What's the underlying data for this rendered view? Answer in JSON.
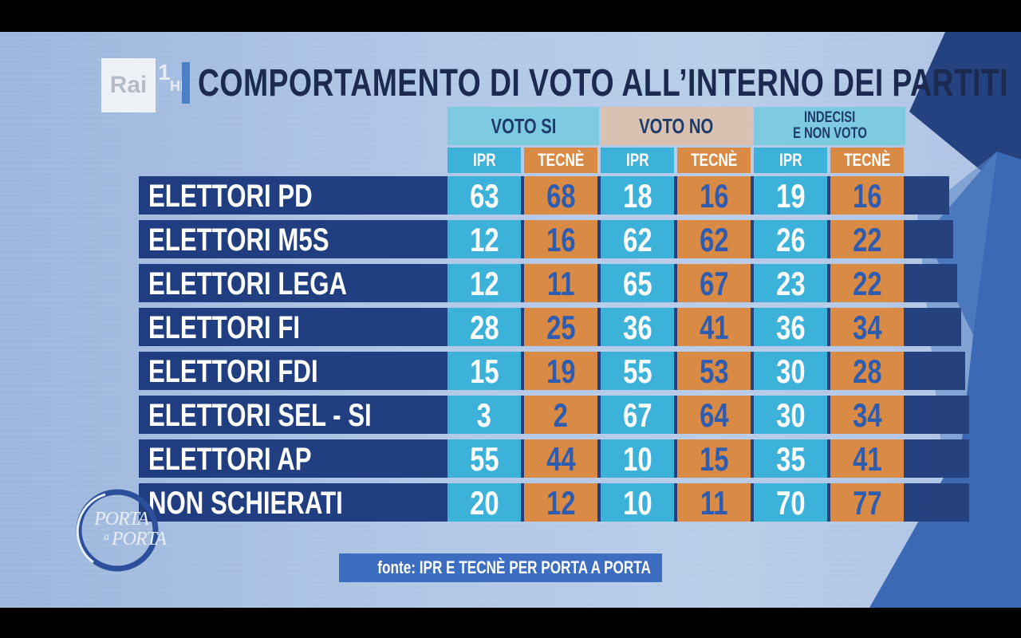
{
  "channel": {
    "rai": "Rai",
    "one": "1",
    "hd": "HD"
  },
  "title": "COMPORTAMENTO DI VOTO ALL’INTERNO DEI PARTITI",
  "chart_data": {
    "type": "table",
    "title": "COMPORTAMENTO DI VOTO ALL’INTERNO DEI PARTITI",
    "column_groups": [
      "VOTO SI",
      "VOTO NO",
      "INDECISI E NON VOTO"
    ],
    "column_group_lines": [
      [
        "VOTO SI"
      ],
      [
        "VOTO NO"
      ],
      [
        "INDECISI",
        "E NON VOTO"
      ]
    ],
    "subcolumns": [
      "IPR",
      "TECNÈ"
    ],
    "rows": [
      {
        "label": "ELETTORI PD",
        "values": [
          63,
          68,
          18,
          16,
          19,
          16
        ]
      },
      {
        "label": "ELETTORI M5S",
        "values": [
          12,
          16,
          62,
          62,
          26,
          22
        ]
      },
      {
        "label": "ELETTORI LEGA",
        "values": [
          12,
          11,
          65,
          67,
          23,
          22
        ]
      },
      {
        "label": "ELETTORI FI",
        "values": [
          28,
          25,
          36,
          41,
          36,
          34
        ]
      },
      {
        "label": "ELETTORI FDI",
        "values": [
          15,
          19,
          55,
          53,
          30,
          28
        ]
      },
      {
        "label": "ELETTORI SEL - SI",
        "values": [
          3,
          2,
          67,
          64,
          30,
          34
        ]
      },
      {
        "label": "ELETTORI AP",
        "values": [
          55,
          44,
          10,
          15,
          35,
          41
        ]
      },
      {
        "label": "NON SCHIERATI",
        "values": [
          20,
          12,
          10,
          11,
          70,
          77
        ]
      }
    ],
    "colors": {
      "ipr": "#3cb1d9",
      "tecne": "#d98a44",
      "row_band": "#223f81"
    }
  },
  "source": "fonte: IPR E TECNÈ PER PORTA A PORTA",
  "show_logo": {
    "line1": "PORTA",
    "small": "a",
    "line2": "PORTA"
  }
}
